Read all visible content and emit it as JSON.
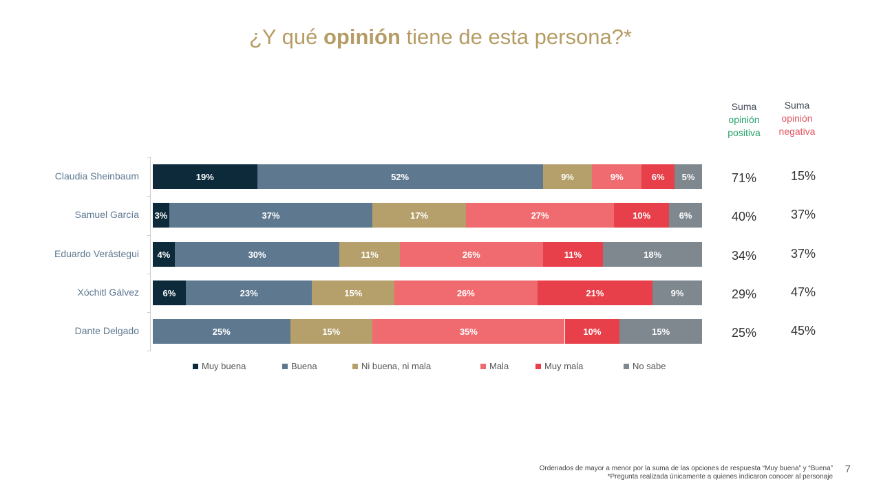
{
  "title": {
    "pre": "¿Y qué ",
    "bold": "opinión",
    "post": " tiene de esta persona?*"
  },
  "headers": {
    "positive": {
      "l1": "Suma",
      "l2": "opinión",
      "l3": "positiva",
      "color": "#27a26b"
    },
    "negative": {
      "l1": "Suma",
      "l2": "opinión",
      "l3": "negativa",
      "color": "#e25560"
    }
  },
  "chart_data": {
    "type": "bar",
    "orientation": "horizontal-stacked-100",
    "categories": [
      "Claudia Sheinbaum",
      "Samuel García",
      "Eduardo Verástegui",
      "Xóchitl Gálvez",
      "Dante Delgado"
    ],
    "series": [
      {
        "name": "Muy buena",
        "color": "#0d2a3a",
        "values": [
          19,
          3,
          4,
          6,
          0
        ]
      },
      {
        "name": "Buena",
        "color": "#5e7890",
        "values": [
          52,
          37,
          30,
          23,
          25
        ]
      },
      {
        "name": "Ni buena, ni mala",
        "color": "#b5a06b",
        "values": [
          9,
          17,
          11,
          15,
          15
        ]
      },
      {
        "name": "Mala",
        "color": "#ef6b6f",
        "values": [
          9,
          27,
          26,
          26,
          35
        ]
      },
      {
        "name": "Muy mala",
        "color": "#e8404a",
        "values": [
          6,
          10,
          11,
          21,
          10
        ]
      },
      {
        "name": "No sabe",
        "color": "#7f878f",
        "values": [
          5,
          6,
          18,
          9,
          15
        ]
      }
    ],
    "legend": "bottom",
    "sum_positive": [
      "71%",
      "40%",
      "34%",
      "29%",
      "25%"
    ],
    "sum_negative": [
      "15%",
      "37%",
      "37%",
      "47%",
      "45%"
    ]
  },
  "footnote": {
    "line1": "Ordenados de mayor a menor por la suma de las opciones de respuesta “Muy buena” y “Buena”",
    "line2": "*Pregunta realizada únicamente a quienes indicaron conocer al personaje"
  },
  "page_number": "7"
}
